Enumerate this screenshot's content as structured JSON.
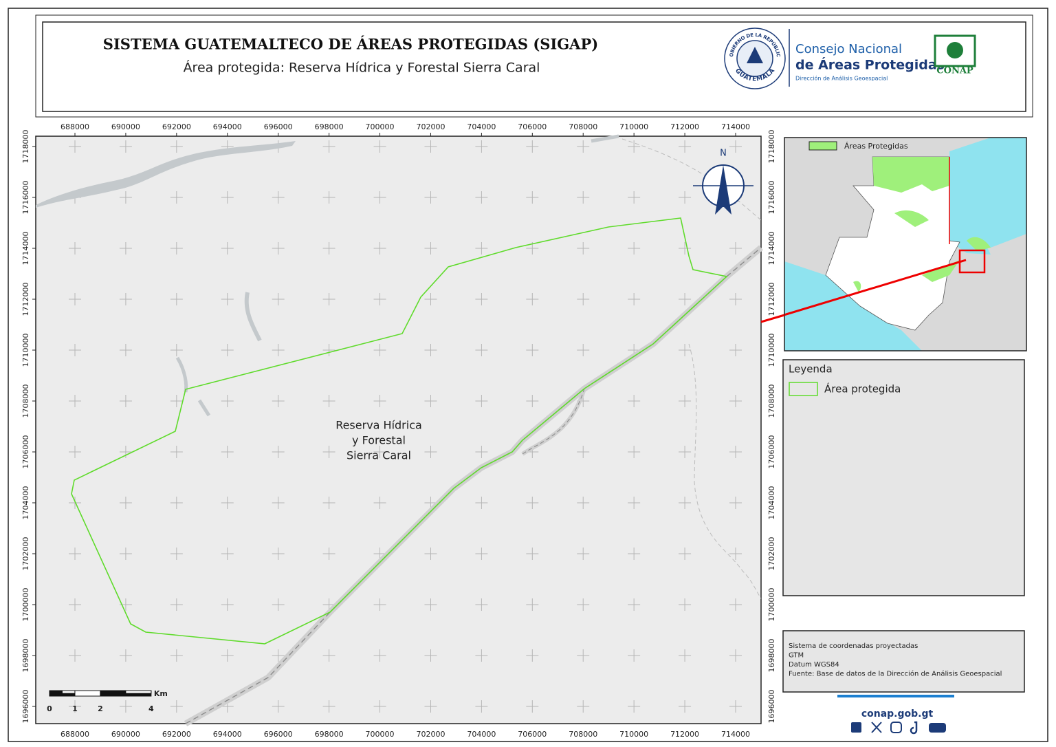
{
  "header": {
    "title": "SISTEMA GUATEMALTECO DE ÁREAS PROTEGIDAS  (SIGAP)",
    "subtitle": "Área protegida: Reserva Hídrica y Forestal Sierra Caral"
  },
  "logos": {
    "seal_top": "GOBIERNO DE LA REPÚBLICA",
    "seal_bottom": "GUATEMALA",
    "conap_line1": "Consejo Nacional",
    "conap_line2": "de Áreas Protegidas",
    "conap_line3": "Dirección de Análisis Geoespacial",
    "conap_badge": "CONAP"
  },
  "map": {
    "xticks": [
      688000,
      690000,
      692000,
      694000,
      696000,
      698000,
      700000,
      702000,
      704000,
      706000,
      708000,
      710000,
      712000,
      714000
    ],
    "yticks": [
      1718000,
      1716000,
      1714000,
      1712000,
      1710000,
      1708000,
      1706000,
      1704000,
      1702000,
      1700000,
      1698000,
      1696000
    ],
    "label": [
      "Reserva Hídrica",
      "y Forestal",
      "Sierra Caral"
    ],
    "north": "N",
    "scale": {
      "labels": [
        0,
        1,
        2,
        4
      ],
      "unit": "Km"
    }
  },
  "inset": {
    "legend": "Áreas Protegidas"
  },
  "legend": {
    "title": "Leyenda",
    "items": [
      "Área protegida"
    ]
  },
  "info": {
    "lines": [
      "Sistema de coordenadas proyectadas",
      "GTM",
      "Datum WGS84",
      "Fuente: Base de datos de la Dirección de Análisis Geoespacial"
    ]
  },
  "footer": {
    "url": "conap.gob.gt"
  }
}
